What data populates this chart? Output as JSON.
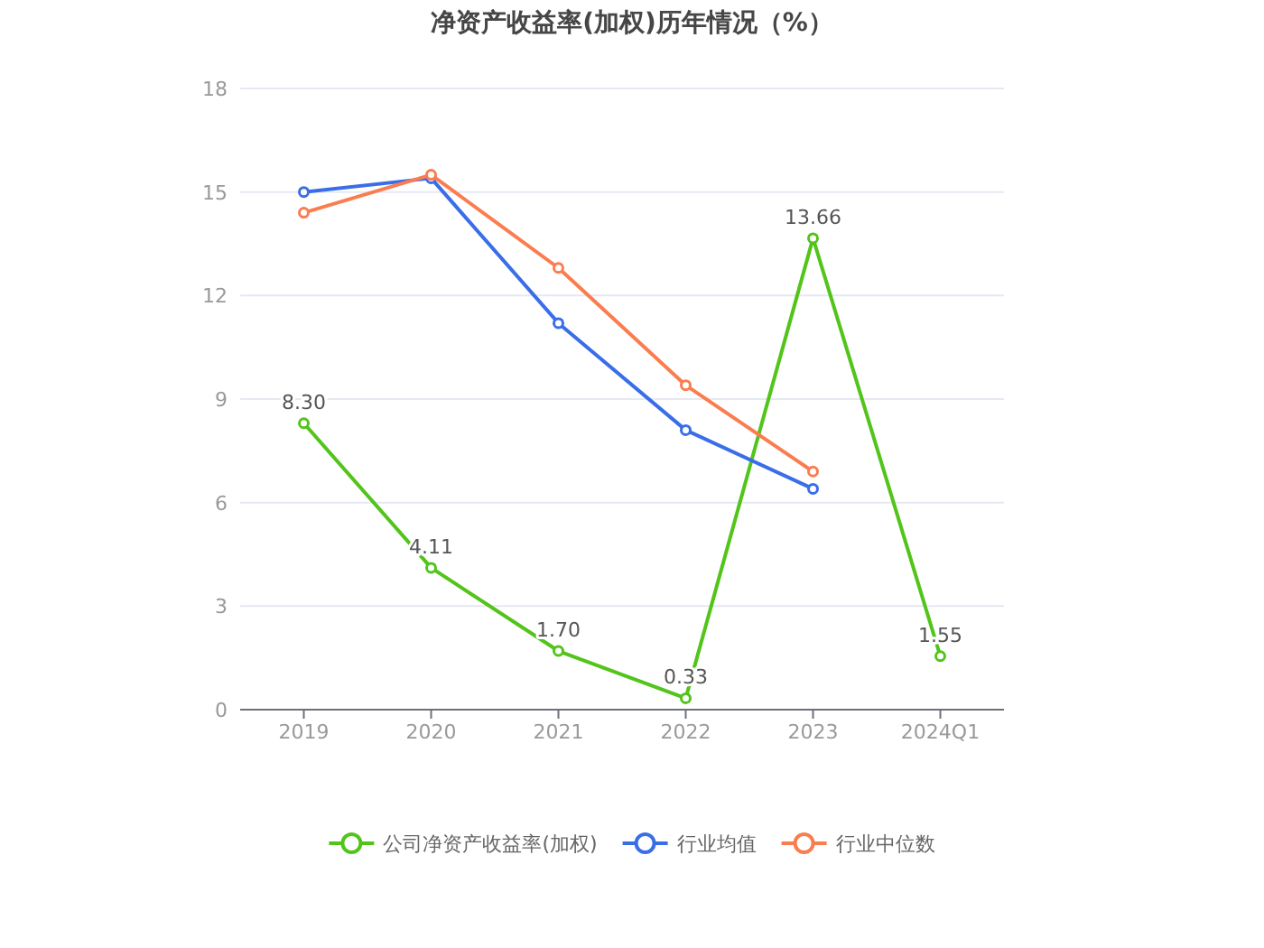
{
  "chart_data": {
    "type": "line",
    "title": "净资产收益率(加权)历年情况（%）",
    "categories": [
      "2019",
      "2020",
      "2021",
      "2022",
      "2023",
      "2024Q1"
    ],
    "series": [
      {
        "name": "公司净资产收益率(加权)",
        "color": "#52c41a",
        "values": [
          8.3,
          4.11,
          1.7,
          0.33,
          13.66,
          1.55
        ],
        "value_labels": [
          "8.30",
          "4.11",
          "1.70",
          "0.33",
          "13.66",
          "1.55"
        ]
      },
      {
        "name": "行业均值",
        "color": "#3a6ee8",
        "values": [
          15.0,
          15.4,
          11.2,
          8.1,
          6.4,
          null
        ]
      },
      {
        "name": "行业中位数",
        "color": "#fa7d50",
        "values": [
          14.4,
          15.5,
          12.8,
          9.4,
          6.9,
          null
        ]
      }
    ],
    "ylim": [
      0,
      18
    ],
    "yticks": [
      0,
      3,
      6,
      9,
      12,
      15,
      18
    ],
    "grid": "y",
    "legend": "bottom",
    "marker": "circle",
    "line_style": "solid"
  }
}
